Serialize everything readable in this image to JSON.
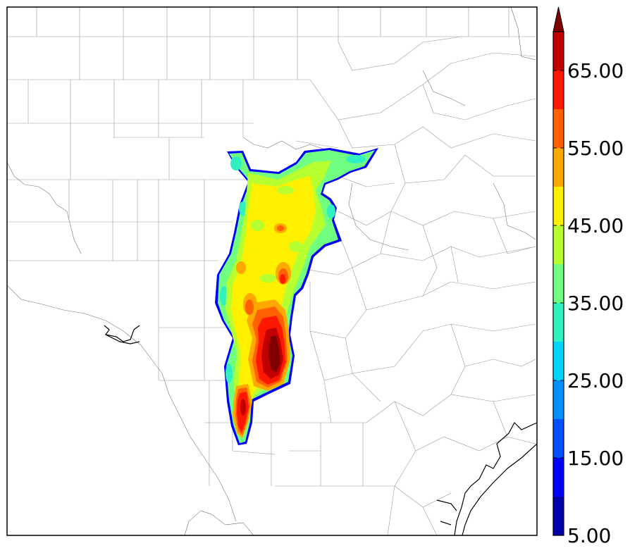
{
  "colorbar": {
    "tick_labels": [
      "5.00",
      "15.00",
      "25.00",
      "35.00",
      "45.00",
      "55.00",
      "65.00"
    ],
    "levels": [
      5,
      10,
      15,
      20,
      25,
      30,
      35,
      40,
      45,
      50,
      55,
      60,
      65,
      70
    ],
    "colors": [
      "#0000a8",
      "#0000ff",
      "#0050ff",
      "#0090ff",
      "#00d4ff",
      "#30f0c0",
      "#70ff80",
      "#b8ff30",
      "#fff000",
      "#ffa800",
      "#ff6000",
      "#ff1800",
      "#c00000",
      "#800000"
    ],
    "extend": "max"
  },
  "map": {
    "county_line_color": "#9a9a9a",
    "coast_color": "#000000"
  }
}
